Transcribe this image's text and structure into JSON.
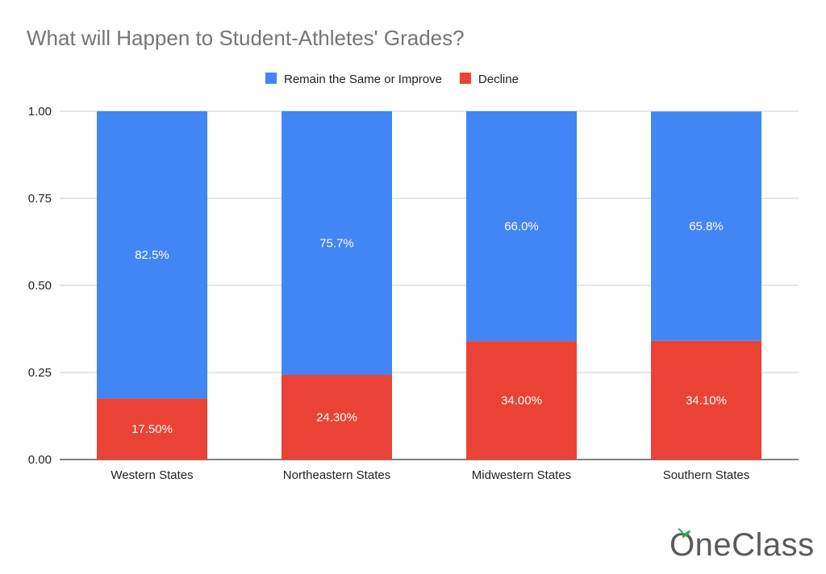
{
  "chart_data": {
    "type": "bar",
    "stacked": true,
    "title": "What will Happen to Student-Athletes' Grades?",
    "xlabel": "",
    "ylabel": "",
    "ylim": [
      0,
      1
    ],
    "yticks": [
      "0.00",
      "0.25",
      "0.50",
      "0.75",
      "1.00"
    ],
    "ytick_values": [
      0,
      0.25,
      0.5,
      0.75,
      1
    ],
    "grid": true,
    "legend_position": "top",
    "categories": [
      "Western States",
      "Northeastern States",
      "Midwestern States",
      "Southern States"
    ],
    "series": [
      {
        "name": "Decline",
        "color": "#ea4335",
        "values": [
          0.175,
          0.243,
          0.34,
          0.341
        ],
        "labels": [
          "17.50%",
          "24.30%",
          "34.00%",
          "34.10%"
        ]
      },
      {
        "name": "Remain the Same or Improve",
        "color": "#4285f4",
        "values": [
          0.825,
          0.757,
          0.66,
          0.658
        ],
        "labels": [
          "82.5%",
          "75.7%",
          "66.0%",
          "65.8%"
        ]
      }
    ],
    "legend_order": [
      "Remain the Same or Improve",
      "Decline"
    ]
  },
  "logo": {
    "text": "OneClass",
    "icon": "apple-icon",
    "color": "#5a5a5a",
    "accent": "#34a853"
  }
}
